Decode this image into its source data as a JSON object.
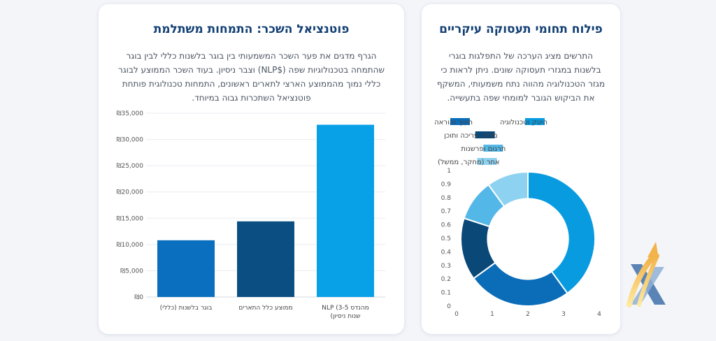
{
  "salary_card": {
    "title": "פוטנציאל השכר: התמחות משתלמת",
    "description": "הגרף מדגים את פער השכר המשמעותי בין בוגר בלשנות כללי לבין בוגר שהתמחה בטכנולוגיות שפה ($NLP) וצבר ניסיון. בעוד השכר הממוצע לבוגר כללי נמוך מהממוצע הארצי לתארים ראשונים, התמחות טכנולוגית פותחת פוטנציאל השתכרות גבוה במיוחד."
  },
  "distribution_card": {
    "title": "פילוח תחומי תעסוקה עיקריים",
    "description": "התרשים מציג הערכה של התפלגות בוגרי בלשנות במגזרי תעסוקה שונים. ניתן לראות כי מגזר הטכנולוגיה מהווה נתח משמעותי, המשקף את הביקוש הגובר למומחי שפה בתעשייה."
  },
  "chart_data": [
    {
      "type": "bar",
      "categories": [
        "בוגר בלשנות (כללי)",
        "ממוצע כלל התארים",
        "מהנדס NLP (3-5 שנות ניסיון)"
      ],
      "category_lines": [
        [
          "בוגר בלשנות (כללי)"
        ],
        [
          "ממוצע כלל התארים"
        ],
        [
          "מהנדס NLP (3-5",
          "שנות ניסיון)"
        ]
      ],
      "values": [
        10800,
        14400,
        32800
      ],
      "colors": [
        "#0a6fbe",
        "#0b4f82",
        "#08a0e6"
      ],
      "ylim": [
        0,
        35000
      ],
      "yticks": [
        0,
        5000,
        10000,
        15000,
        20000,
        25000,
        30000,
        35000
      ],
      "ytick_labels": [
        "₪0",
        "₪5,000",
        "₪10,000",
        "₪15,000",
        "₪20,000",
        "₪25,000",
        "₪30,000",
        "₪35,000"
      ],
      "grid": true
    },
    {
      "type": "pie",
      "hole": 0.6,
      "labels": [
        "היטק וטכנולוגיה",
        "חינוך והוראה",
        "מדיה, עריכה ותוכן",
        "תרגום ופרשנות",
        "אחר (מחקר, ממשל)"
      ],
      "values": [
        40,
        25,
        15,
        10,
        10
      ],
      "colors": [
        "#089be0",
        "#0b6cb8",
        "#0a4878",
        "#53b8e8",
        "#8ed2f1"
      ],
      "legend_position": "top",
      "xlim": [
        0,
        4
      ],
      "xticks": [
        0,
        1,
        2,
        3,
        4
      ],
      "ylim": [
        0,
        1
      ],
      "yticks": [
        0,
        0.1,
        0.2,
        0.3,
        0.4,
        0.5,
        0.6,
        0.7,
        0.8,
        0.9,
        1
      ],
      "ytick_labels": [
        "0",
        "0.1",
        "0.2",
        "0.3",
        "0.4",
        "0.5",
        "0.6",
        "0.7",
        "0.8",
        "0.9",
        "1"
      ]
    }
  ]
}
